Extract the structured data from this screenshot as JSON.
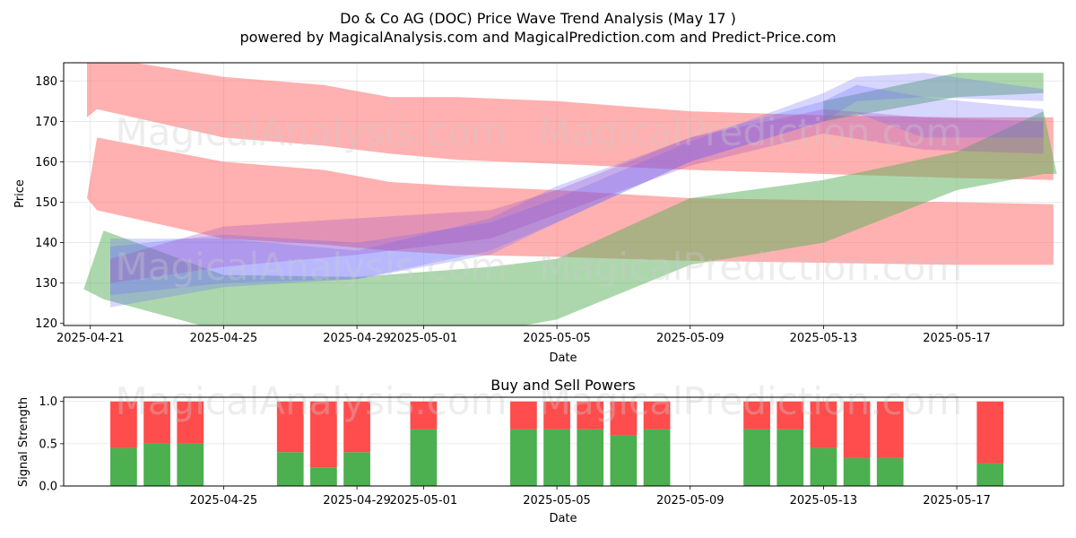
{
  "title_line1": "Do & Co AG (DOC) Price Wave Trend Analysis (May 17 )",
  "title_line2": "powered by MagicalAnalysis.com and MagicalPrediction.com and Predict-Price.com",
  "watermarks": [
    "MagicalAnalysis.com",
    "MagicalPrediction.com"
  ],
  "colors": {
    "red_band": "#ff6f6f",
    "green_band": "#5aaf5a",
    "blue_band": "#6a6aff",
    "purple_band": "#a050c0",
    "buy": "#4caf50",
    "sell": "#ff4c4c"
  },
  "chart_data": [
    {
      "type": "area",
      "title": "",
      "xlabel": "Date",
      "ylabel": "Price",
      "x_range_days": [
        -0.8,
        29.2
      ],
      "ylim": [
        119.5,
        184.5
      ],
      "x_ticks": [
        {
          "day": 0,
          "label": "2025-04-21"
        },
        {
          "day": 4,
          "label": "2025-04-25"
        },
        {
          "day": 8,
          "label": "2025-04-29"
        },
        {
          "day": 10,
          "label": "2025-05-01"
        },
        {
          "day": 14,
          "label": "2025-05-05"
        },
        {
          "day": 18,
          "label": "2025-05-09"
        },
        {
          "day": 22,
          "label": "2025-05-13"
        },
        {
          "day": 26,
          "label": "2025-05-17"
        }
      ],
      "y_ticks": [
        120,
        130,
        140,
        150,
        160,
        170,
        180
      ],
      "grid": true,
      "series": [
        {
          "name": "red-band-upper",
          "color": "red",
          "x": [
            -0.1,
            0.2,
            4,
            7,
            9,
            11,
            14,
            18,
            22,
            26,
            28.9
          ],
          "upper": [
            186,
            186,
            181,
            179,
            176,
            176,
            175,
            172.5,
            171.5,
            171,
            171
          ],
          "lower": [
            171,
            173,
            166,
            164,
            162,
            160.5,
            159.5,
            158,
            157,
            156,
            155.5
          ]
        },
        {
          "name": "red-band-lower",
          "color": "red",
          "x": [
            -0.1,
            0.2,
            4,
            7,
            9,
            11,
            14,
            18,
            22,
            26,
            28.9
          ],
          "upper": [
            151,
            166,
            160,
            158,
            155,
            154,
            153,
            151,
            150.5,
            150,
            149.5
          ],
          "lower": [
            151,
            148,
            141,
            139.5,
            138,
            137,
            136.5,
            135.5,
            135,
            134.5,
            134.5
          ]
        },
        {
          "name": "green-band-rising",
          "color": "green",
          "x": [
            -0.2,
            0.4,
            4,
            8,
            12,
            14,
            18,
            22,
            26,
            28.6,
            29
          ],
          "upper": [
            128.5,
            143,
            132,
            131.5,
            134,
            136,
            151,
            155.5,
            162.5,
            172.5,
            157
          ],
          "lower": [
            128.5,
            126,
            118,
            118,
            118,
            121,
            134.5,
            140,
            153,
            157,
            157
          ]
        },
        {
          "name": "green-band-top",
          "color": "green",
          "x": [
            22,
            26,
            28.6
          ],
          "upper": [
            175,
            182,
            182
          ],
          "lower": [
            170,
            176,
            177
          ]
        },
        {
          "name": "blue-wave-1",
          "color": "blue",
          "x": [
            0.6,
            4,
            8,
            12,
            14,
            18,
            22,
            23,
            25,
            28.6
          ],
          "upper": [
            141,
            141,
            138,
            146,
            154,
            166,
            175,
            179,
            176,
            173
          ],
          "lower": [
            127,
            130,
            131,
            138,
            145,
            160,
            170,
            172,
            166,
            166
          ]
        },
        {
          "name": "blue-wave-2",
          "color": "blue",
          "x": [
            0.6,
            4,
            8,
            12,
            14,
            18,
            22,
            23,
            25,
            28.6
          ],
          "upper": [
            139,
            142,
            140,
            145,
            151,
            165,
            177,
            181,
            182,
            178
          ],
          "lower": [
            124,
            129,
            131,
            137,
            145,
            160,
            170,
            175,
            176,
            175
          ]
        },
        {
          "name": "purple-wave",
          "color": "purple",
          "x": [
            0.6,
            4,
            8,
            12,
            14,
            18,
            22,
            25,
            28.6
          ],
          "upper": [
            136,
            144,
            146,
            148,
            153,
            166,
            173,
            171,
            170
          ],
          "lower": [
            130,
            134,
            137,
            141,
            147,
            159,
            167,
            163,
            162
          ]
        }
      ]
    },
    {
      "type": "bar",
      "title": "Buy and Sell Powers",
      "xlabel": "Date",
      "ylabel": "Signal Strength",
      "ylim": [
        0,
        1.05
      ],
      "y_ticks": [
        0.0,
        0.5,
        1.0
      ],
      "x_ticks": [
        {
          "day": 4,
          "label": "2025-04-25"
        },
        {
          "day": 8,
          "label": "2025-04-29"
        },
        {
          "day": 10,
          "label": "2025-05-01"
        },
        {
          "day": 14,
          "label": "2025-05-05"
        },
        {
          "day": 18,
          "label": "2025-05-09"
        },
        {
          "day": 22,
          "label": "2025-05-13"
        },
        {
          "day": 26,
          "label": "2025-05-17"
        }
      ],
      "days": [
        1,
        2,
        3,
        6,
        7,
        8,
        10,
        13,
        14,
        15,
        16,
        17,
        20,
        21,
        22,
        23,
        24,
        27
      ],
      "series": [
        {
          "name": "Buy",
          "values": [
            0.45,
            0.5,
            0.5,
            0.4,
            0.22,
            0.4,
            0.67,
            0.67,
            0.67,
            0.67,
            0.6,
            0.67,
            0.67,
            0.67,
            0.45,
            0.33,
            0.33,
            0.27
          ]
        },
        {
          "name": "Sell",
          "values": [
            0.55,
            0.5,
            0.5,
            0.6,
            0.78,
            0.6,
            0.33,
            0.33,
            0.33,
            0.33,
            0.4,
            0.33,
            0.33,
            0.33,
            0.55,
            0.67,
            0.67,
            0.73
          ]
        }
      ]
    }
  ]
}
